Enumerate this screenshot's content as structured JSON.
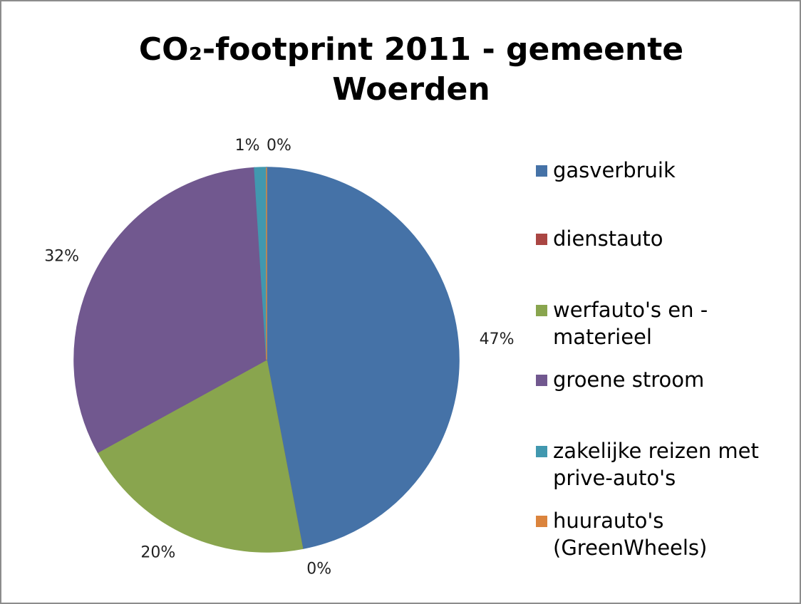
{
  "chart_data": {
    "type": "pie",
    "title": "CO₂-footprint 2011 - gemeente Woerden",
    "categories": [
      "gasverbruik",
      "dienstauto",
      "werfauto's en - materieel",
      "groene stroom",
      "zakelijke reizen met prive-auto's",
      "huurauto's (GreenWheels)"
    ],
    "values": [
      47,
      0,
      20,
      32,
      1,
      0
    ],
    "value_labels": [
      "47%",
      "0%",
      "20%",
      "32%",
      "1%",
      "0%"
    ],
    "colors": [
      "#4572a7",
      "#aa4643",
      "#89a54e",
      "#71588f",
      "#4198af",
      "#db843d"
    ],
    "legend": "right"
  }
}
